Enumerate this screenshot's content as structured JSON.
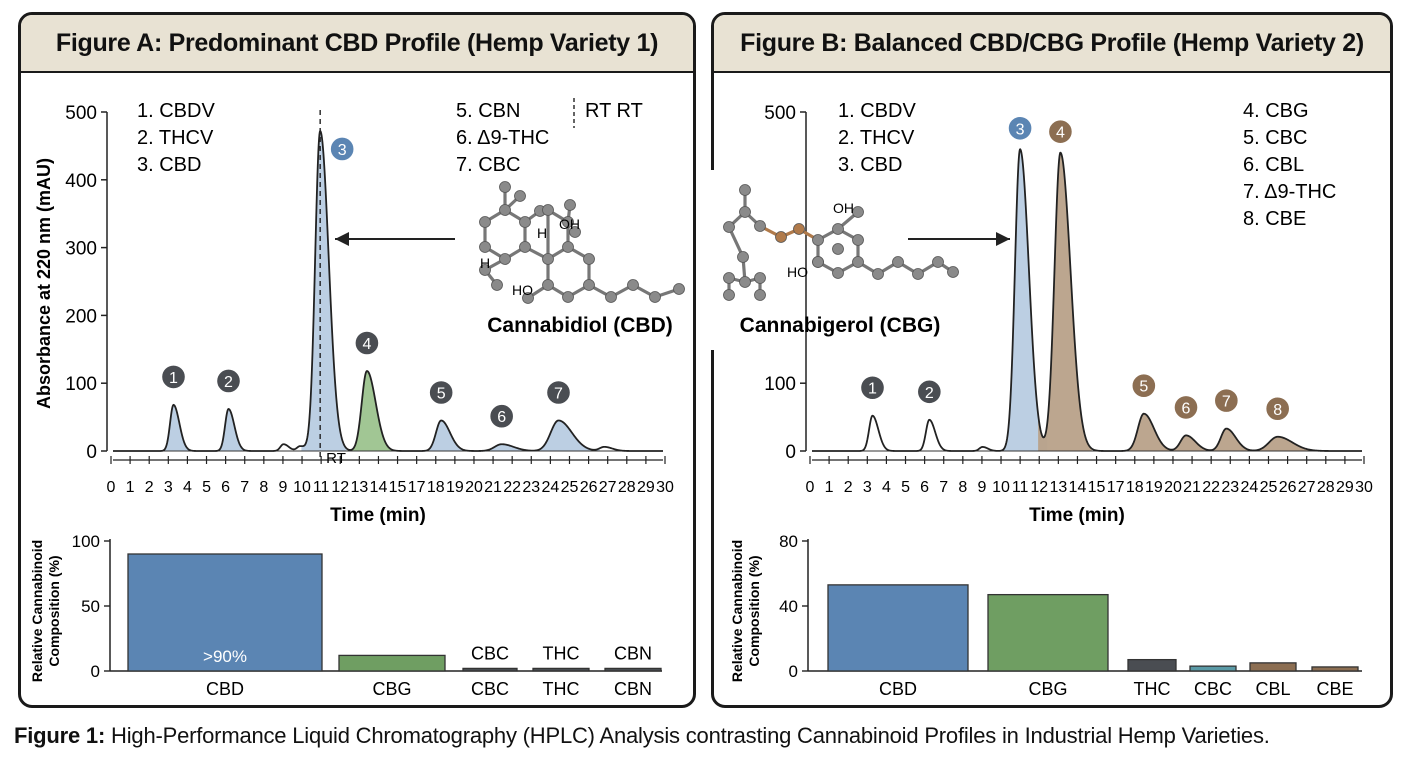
{
  "caption": {
    "prefix": "Figure 1:",
    "text": "High-Performance Liquid Chromatography (HPLC) Analysis contrasting Cannabinoid Profiles in Industrial Hemp Varieties."
  },
  "molecules": {
    "left_name": "Cannabidiol (CBD)",
    "right_name": "Cannabigerol (CBG)",
    "left_labels": [
      "OH",
      "HO",
      "H",
      "H"
    ],
    "right_labels": [
      "OH",
      "HO"
    ]
  },
  "colors": {
    "blue": "#5b85b3",
    "blue_light": "#b8cce2",
    "green": "#6f9e62",
    "green_light": "#9cc38e",
    "brown": "#8c6e52",
    "brown_light": "#b8a189",
    "grey_marker": "#4a4d52",
    "panel_header": "#e8e2d3"
  },
  "chart_data": [
    {
      "id": "A",
      "type": "line",
      "title": "Figure A: Predominant CBD Profile (Hemp Variety 1)",
      "xlabel": "Time (min)",
      "ylabel": "Absorbance at 220 nm (mAU)",
      "xlim": [
        0,
        30
      ],
      "ylim": [
        0,
        500
      ],
      "yticks": [
        0,
        100,
        200,
        300,
        400,
        500
      ],
      "xticks": [
        "0",
        "1",
        "2",
        "3",
        "4",
        "5",
        "6",
        "7",
        "8",
        "9",
        "10",
        "11",
        "12",
        "13",
        "14",
        "15",
        "17",
        "18",
        "19",
        "20",
        "21",
        "22",
        "23",
        "24",
        "25",
        "26",
        "27",
        "28",
        "29",
        "30"
      ],
      "legend_left": [
        "1. CBDV",
        "2. THCV",
        "3. CBD"
      ],
      "legend_right": [
        "5. CBN",
        "6. Δ9-THC",
        "7. CBC"
      ],
      "rt_legend": "RT RT",
      "rt_marker": {
        "x": 11.3,
        "label": "RT"
      },
      "peaks": [
        {
          "label": "1",
          "name": "CBDV",
          "x": 3.3,
          "height": 68,
          "width": 0.22,
          "color": "blue",
          "marker": "grey"
        },
        {
          "label": "2",
          "name": "THCV",
          "x": 6.3,
          "height": 62,
          "width": 0.22,
          "color": "blue",
          "marker": "grey"
        },
        {
          "label": "",
          "name": "",
          "x": 9.3,
          "height": 10,
          "width": 0.2,
          "color": "none",
          "marker": "none"
        },
        {
          "label": "",
          "name": "",
          "x": 10.2,
          "height": 7,
          "width": 0.2,
          "color": "none",
          "marker": "none"
        },
        {
          "label": "3",
          "name": "CBD",
          "x": 11.3,
          "height": 472,
          "width": 0.32,
          "color": "blue",
          "marker": "blue"
        },
        {
          "label": "4",
          "name": "CBG",
          "x": 13.85,
          "height": 118,
          "width": 0.33,
          "color": "green",
          "marker": "grey"
        },
        {
          "label": "5",
          "name": "CBN",
          "x": 17.9,
          "height": 45,
          "width": 0.33,
          "color": "blue",
          "marker": "grey"
        },
        {
          "label": "6",
          "name": "Δ9-THC",
          "x": 21.2,
          "height": 10,
          "width": 0.45,
          "color": "blue",
          "marker": "grey"
        },
        {
          "label": "7",
          "name": "CBC",
          "x": 24.3,
          "height": 45,
          "width": 0.5,
          "color": "blue",
          "marker": "grey"
        },
        {
          "label": "",
          "name": "",
          "x": 26.8,
          "height": 6,
          "width": 0.3,
          "color": "none",
          "marker": "none"
        }
      ]
    },
    {
      "id": "B",
      "type": "line",
      "title": "Figure B: Balanced CBD/CBG Profile (Hemp Variety 2)",
      "xlabel": "Time (min)",
      "ylabel": "",
      "xlim": [
        0,
        30
      ],
      "ylim": [
        0,
        500
      ],
      "yticks": [
        0,
        100,
        500
      ],
      "xticks": [
        "0",
        "1",
        "2",
        "3",
        "4",
        "5",
        "6",
        "7",
        "8",
        "9",
        "10",
        "11",
        "12",
        "13",
        "14",
        "15",
        "17",
        "18",
        "19",
        "20",
        "21",
        "22",
        "23",
        "24",
        "25",
        "26",
        "27",
        "28",
        "29",
        "30"
      ],
      "legend_left": [
        "1. CBDV",
        "2. THCV",
        "3. CBD"
      ],
      "legend_right": [
        "4. CBG",
        "5. CBC",
        "6. CBL",
        "7. Δ9-THC",
        "8. CBE"
      ],
      "peaks": [
        {
          "label": "1",
          "name": "CBDV",
          "x": 3.3,
          "height": 52,
          "width": 0.22,
          "color": "none",
          "marker": "grey"
        },
        {
          "label": "2",
          "name": "THCV",
          "x": 6.4,
          "height": 46,
          "width": 0.22,
          "color": "none",
          "marker": "grey"
        },
        {
          "label": "",
          "name": "",
          "x": 9.3,
          "height": 6,
          "width": 0.2,
          "color": "none",
          "marker": "none"
        },
        {
          "label": "3",
          "name": "CBD",
          "x": 11.35,
          "height": 445,
          "width": 0.33,
          "color": "blue",
          "marker": "blue"
        },
        {
          "label": "4",
          "name": "CBG",
          "x": 13.55,
          "height": 440,
          "width": 0.38,
          "color": "brown",
          "marker": "brown"
        },
        {
          "label": "5",
          "name": "CBC",
          "x": 18.1,
          "height": 55,
          "width": 0.38,
          "color": "brown",
          "marker": "brown"
        },
        {
          "label": "6",
          "name": "CBL",
          "x": 20.4,
          "height": 23,
          "width": 0.35,
          "color": "brown",
          "marker": "brown"
        },
        {
          "label": "7",
          "name": "Δ9-THC",
          "x": 22.6,
          "height": 33,
          "width": 0.35,
          "color": "brown",
          "marker": "brown"
        },
        {
          "label": "8",
          "name": "CBE",
          "x": 25.4,
          "height": 21,
          "width": 0.55,
          "color": "brown",
          "marker": "brown"
        }
      ]
    },
    {
      "id": "A-bars",
      "type": "bar",
      "title": "",
      "xlabel": "",
      "ylabel": "Relative Cannabinoid Composition (%)",
      "ylim": [
        0,
        100
      ],
      "yticks": [
        0,
        50,
        100
      ],
      "categories": [
        "CBD",
        "CBG",
        "CBC",
        "THC",
        "CBN"
      ],
      "values": [
        90,
        12,
        2,
        2,
        2
      ],
      "colors": [
        "blue",
        "green",
        "grey_marker",
        "grey_marker",
        "grey_marker"
      ],
      "top_labels": [
        "",
        "",
        "CBC",
        "THC",
        "CBN"
      ],
      "inner_label": ">90%"
    },
    {
      "id": "B-bars",
      "type": "bar",
      "title": "",
      "xlabel": "",
      "ylabel": "Relative Cannabinoid Composition (%)",
      "ylim": [
        0,
        80
      ],
      "yticks": [
        0,
        40,
        80
      ],
      "categories": [
        "CBD",
        "CBG",
        "THC",
        "CBC",
        "CBL",
        "CBE"
      ],
      "values": [
        53,
        47,
        7,
        3,
        5,
        2.5
      ],
      "colors": [
        "blue",
        "green",
        "grey_marker",
        "teal",
        "brown",
        "brown"
      ]
    }
  ]
}
